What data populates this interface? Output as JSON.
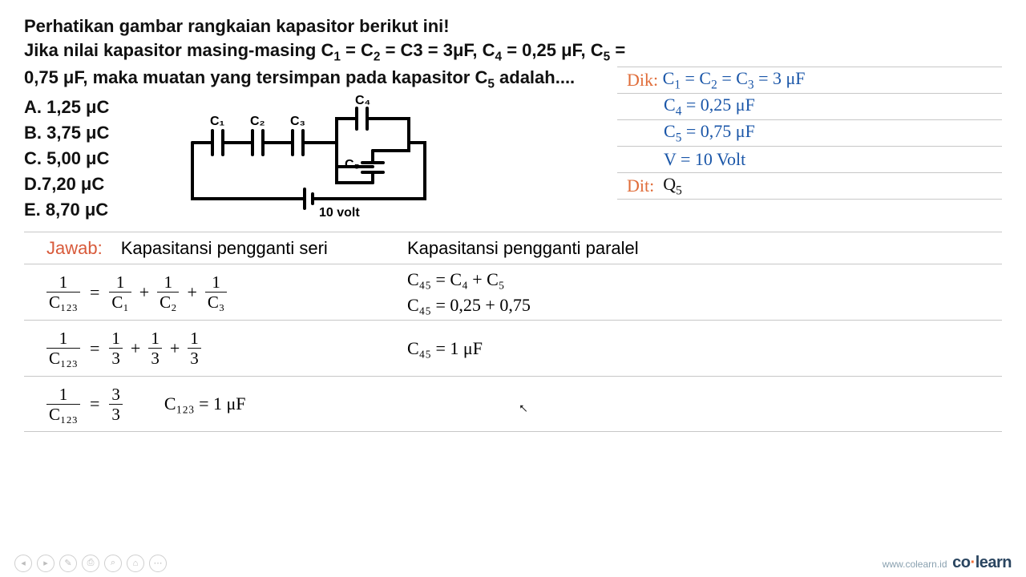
{
  "question": {
    "line1": "Perhatikan gambar rangkaian kapasitor berikut ini!",
    "line2_html": "Jika nilai kapasitor masing-masing C<sub>1</sub> = C<sub>2</sub> = C3 = 3μF, C<sub>4</sub> = 0,25 μF, C<sub>5</sub> =",
    "line3_html": "0,75 μF, maka muatan yang tersimpan pada kapasitor C<sub>5</sub> adalah...."
  },
  "answers": {
    "A": "A. 1,25 μC",
    "B": "B. 3,75 μC",
    "C": "C. 5,00 μC",
    "D": "D.7,20 μC",
    "E": "E. 8,70 μC"
  },
  "circuit": {
    "labels": {
      "C1": "C₁",
      "C2": "C₂",
      "C3": "C₃",
      "C4": "C₄",
      "C5": "C₅"
    },
    "source": "10 volt"
  },
  "dik": {
    "label": "Dik:",
    "l1_html": "C<sub>1</sub> = C<sub>2</sub> = C<sub>3</sub> = 3 μF",
    "l2_html": "C<sub>4</sub> = 0,25 μF",
    "l3_html": "C<sub>5</sub> = 0,75 μF",
    "l4_html": "V = 10 Volt"
  },
  "dit": {
    "label": "Dit:",
    "value_html": "Q<sub>5</sub>"
  },
  "jawab": {
    "label": "Jawab:",
    "left_title": "Kapasitansi pengganti seri",
    "right_title": "Kapasitansi pengganti paralel",
    "series": {
      "row1": {
        "lhs_num": "1",
        "lhs_den": "C₁₂₃",
        "t1_num": "1",
        "t1_den": "C₁",
        "t2_num": "1",
        "t2_den": "C₂",
        "t3_num": "1",
        "t3_den": "C₃"
      },
      "row2": {
        "lhs_num": "1",
        "lhs_den": "C₁₂₃",
        "t1_num": "1",
        "t1_den": "3",
        "t2_num": "1",
        "t2_den": "3",
        "t3_num": "1",
        "t3_den": "3"
      },
      "row3": {
        "lhs_num": "1",
        "lhs_den": "C₁₂₃",
        "r_num": "3",
        "r_den": "3",
        "result": "C₁₂₃ = 1 μF"
      }
    },
    "parallel": {
      "r1": "C₄₅ = C₄ + C₅",
      "r2": "C₄₅ = 0,25 + 0,75",
      "r3": "C₄₅ = 1 μF"
    }
  },
  "footer": {
    "icons": [
      "◂",
      "▸",
      "✎",
      "⎙",
      "⌕",
      "⌂",
      "⋯"
    ],
    "site": "www.colearn.id",
    "brand_a": "co",
    "brand_b": "learn"
  },
  "colors": {
    "rule": "#c7c7c7",
    "dik": "#e06d3a",
    "blue": "#1a56a8",
    "text": "#111111"
  }
}
